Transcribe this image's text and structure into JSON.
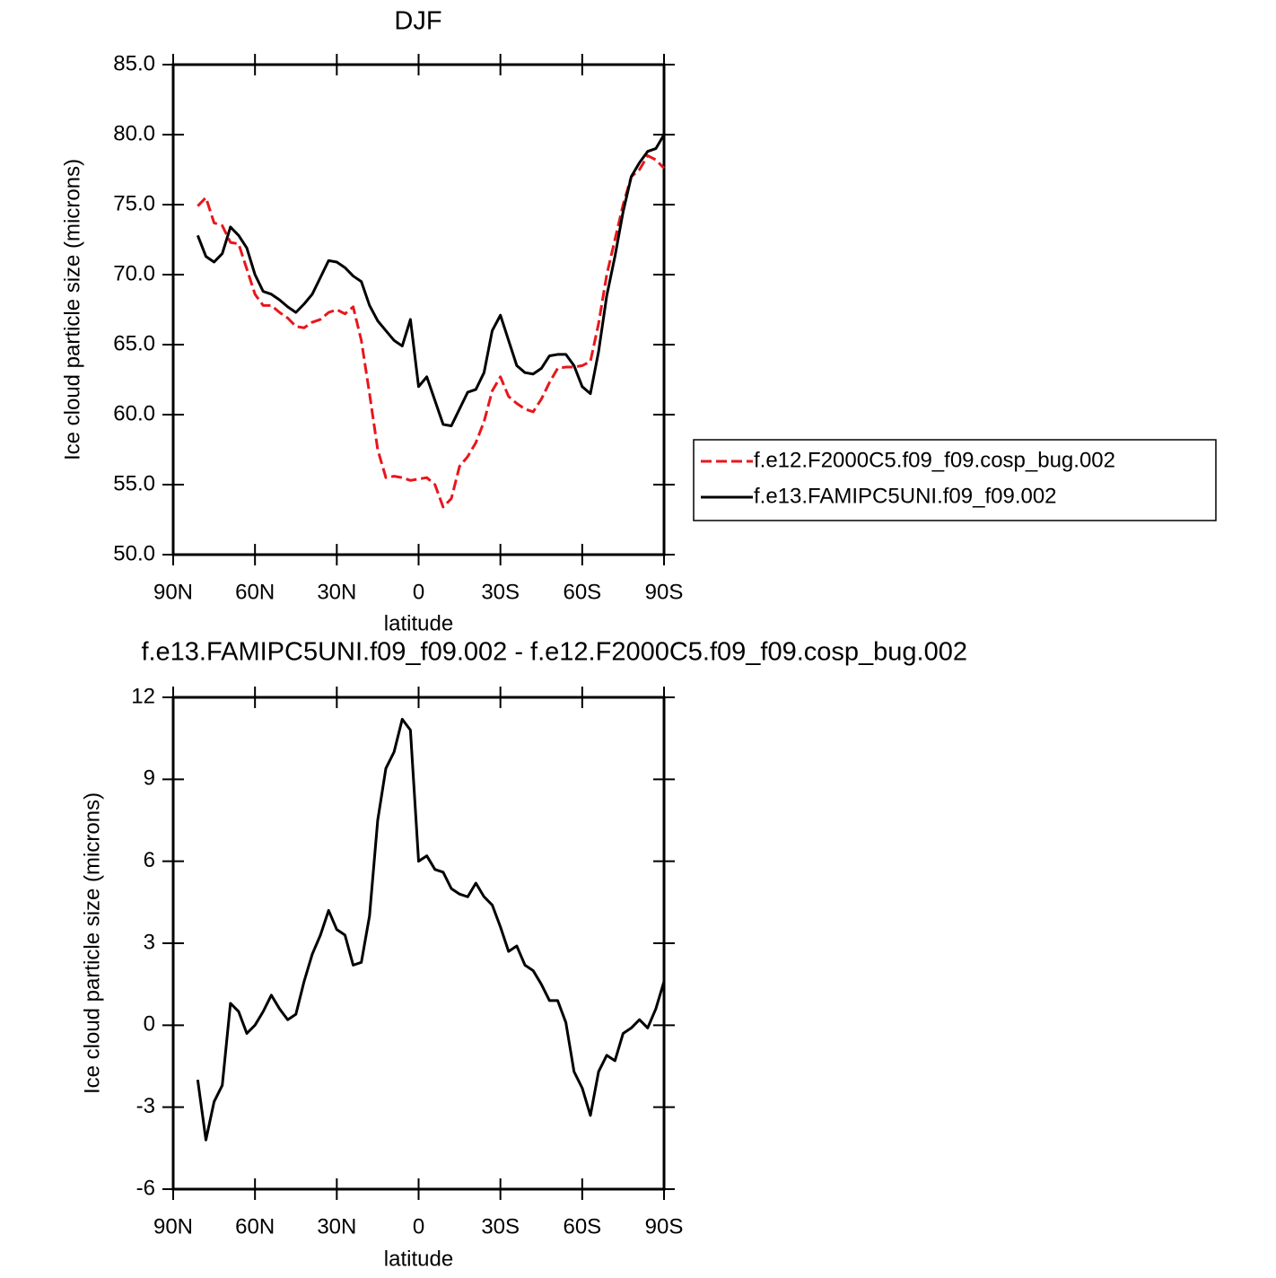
{
  "chart_data": [
    {
      "type": "line",
      "title": "DJF",
      "xlabel": "latitude",
      "ylabel": "Ice cloud particle size (microns)",
      "x": [
        81,
        78,
        75,
        72,
        69,
        66,
        63,
        60,
        57,
        54,
        51,
        48,
        45,
        42,
        39,
        36,
        33,
        30,
        27,
        24,
        21,
        18,
        15,
        12,
        9,
        6,
        3,
        0,
        -3,
        -6,
        -9,
        -12,
        -15,
        -18,
        -21,
        -24,
        -27,
        -30,
        -33,
        -36,
        -39,
        -42,
        -45,
        -48,
        -51,
        -54,
        -57,
        -60,
        -63,
        -66,
        -69,
        -72,
        -75,
        -78,
        -81,
        -84,
        -87,
        -90
      ],
      "series": [
        {
          "name": "f.e12.F2000C5.f09_f09.cosp_bug.002",
          "color": "#e8161b",
          "dash": true,
          "values": [
            74.9,
            75.5,
            73.7,
            73.5,
            72.3,
            72.2,
            70.4,
            68.6,
            67.8,
            67.8,
            67.3,
            66.9,
            66.3,
            66.2,
            66.6,
            66.8,
            67.3,
            67.5,
            67.2,
            67.7,
            65.3,
            61.5,
            57.5,
            55.5,
            55.6,
            55.5,
            55.3,
            55.4,
            55.5,
            55.0,
            53.4,
            54.0,
            56.3,
            57.0,
            58.0,
            59.5,
            61.7,
            62.7,
            61.3,
            60.8,
            60.4,
            60.2,
            61.1,
            62.3,
            63.3,
            63.4,
            63.4,
            63.5,
            63.8,
            66.5,
            70.0,
            72.5,
            75.0,
            77.0,
            77.5,
            78.5,
            78.2,
            77.6
          ]
        },
        {
          "name": "f.e13.FAMIPC5UNI.f09_f09.002",
          "color": "#000000",
          "dash": false,
          "values": [
            72.8,
            71.3,
            70.9,
            71.5,
            73.4,
            72.8,
            71.9,
            70.0,
            68.8,
            68.6,
            68.2,
            67.7,
            67.3,
            67.9,
            68.6,
            69.8,
            71.0,
            70.9,
            70.5,
            69.9,
            69.5,
            67.8,
            66.7,
            66.0,
            65.3,
            64.9,
            66.8,
            62.0,
            62.7,
            61.0,
            59.3,
            59.2,
            60.4,
            61.6,
            61.8,
            63.0,
            66.0,
            67.1,
            65.3,
            63.5,
            63.0,
            62.9,
            63.3,
            64.2,
            64.3,
            64.3,
            63.5,
            62.0,
            61.5,
            64.5,
            68.5,
            71.3,
            74.5,
            77.0,
            78.0,
            78.8,
            79.0,
            80.0
          ]
        }
      ],
      "xlim": [
        90,
        -90
      ],
      "xticks": [
        {
          "value": 90,
          "label": "90N"
        },
        {
          "value": 60,
          "label": "60N"
        },
        {
          "value": 30,
          "label": "30N"
        },
        0,
        {
          "value": -30,
          "label": "30S"
        },
        {
          "value": -60,
          "label": "60S"
        },
        {
          "value": -90,
          "label": "90S"
        }
      ],
      "ylim": [
        50,
        85
      ],
      "yticks": [
        {
          "value": 50,
          "label": "50.0"
        },
        {
          "value": 55,
          "label": "55.0"
        },
        {
          "value": 60,
          "label": "60.0"
        },
        {
          "value": 65,
          "label": "65.0"
        },
        {
          "value": 70,
          "label": "70.0"
        },
        {
          "value": 75,
          "label": "75.0"
        },
        {
          "value": 80,
          "label": "80.0"
        },
        {
          "value": 85,
          "label": "85.0"
        }
      ],
      "legend": "right"
    },
    {
      "type": "line",
      "title": "f.e13.FAMIPC5UNI.f09_f09.002 - f.e12.F2000C5.f09_f09.cosp_bug.002",
      "xlabel": "latitude",
      "ylabel": "Ice cloud particle size (microns)",
      "x": [
        81,
        78,
        75,
        72,
        69,
        66,
        63,
        60,
        57,
        54,
        51,
        48,
        45,
        42,
        39,
        36,
        33,
        30,
        27,
        24,
        21,
        18,
        15,
        12,
        9,
        6,
        3,
        0,
        -3,
        -6,
        -9,
        -12,
        -15,
        -18,
        -21,
        -24,
        -27,
        -30,
        -33,
        -36,
        -39,
        -42,
        -45,
        -48,
        -51,
        -54,
        -57,
        -60,
        -63,
        -66,
        -69,
        -72,
        -75,
        -78,
        -81,
        -84,
        -87,
        -90
      ],
      "color": "#000000",
      "values": [
        -2.0,
        -4.2,
        -2.8,
        -2.2,
        0.8,
        0.5,
        -0.3,
        0.0,
        0.5,
        1.1,
        0.6,
        0.2,
        0.4,
        1.6,
        2.6,
        3.3,
        4.2,
        3.5,
        3.3,
        2.2,
        2.3,
        4.0,
        7.5,
        9.4,
        10.0,
        11.2,
        10.8,
        6.0,
        6.2,
        5.7,
        5.6,
        5.0,
        4.8,
        4.7,
        5.2,
        4.7,
        4.4,
        3.6,
        2.7,
        2.9,
        2.2,
        2.0,
        1.5,
        0.9,
        0.9,
        0.1,
        -1.7,
        -2.3,
        -3.3,
        -1.7,
        -1.1,
        -1.3,
        -0.3,
        -0.1,
        0.2,
        -0.1,
        0.6,
        1.6
      ],
      "xlim": [
        90,
        -90
      ],
      "xticks": [
        {
          "value": 90,
          "label": "90N"
        },
        {
          "value": 60,
          "label": "60N"
        },
        {
          "value": 30,
          "label": "30N"
        },
        0,
        {
          "value": -30,
          "label": "30S"
        },
        {
          "value": -60,
          "label": "60S"
        },
        {
          "value": -90,
          "label": "90S"
        }
      ],
      "ylim": [
        -6,
        12
      ],
      "yticks": [
        -6,
        -3,
        0,
        3,
        6,
        9,
        12
      ]
    }
  ]
}
